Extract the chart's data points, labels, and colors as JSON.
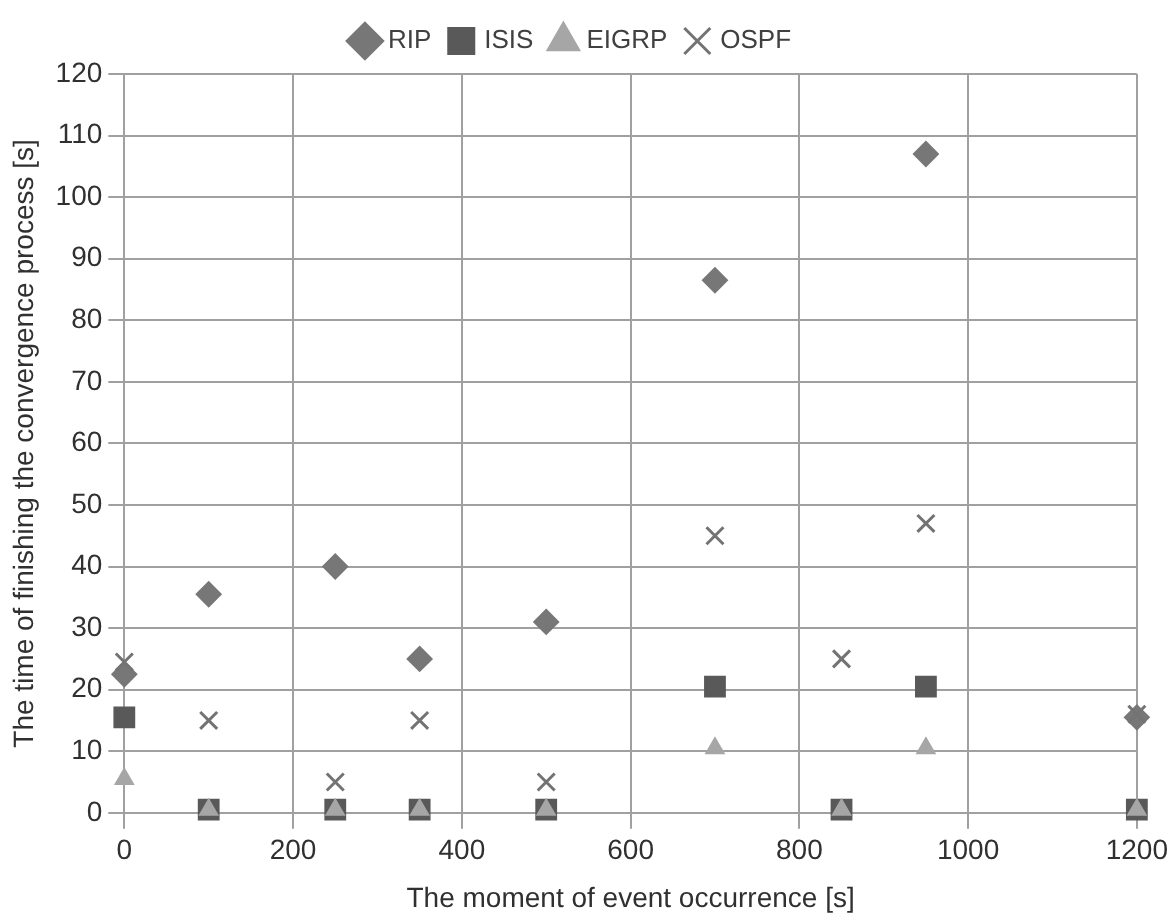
{
  "chart_data": {
    "type": "scatter",
    "xlabel": "The moment of event occurrence [s]",
    "ylabel": "The time of finishing the convergence process [s]",
    "x": [
      0,
      100,
      250,
      350,
      500,
      700,
      850,
      950,
      1200
    ],
    "xlim": [
      0,
      1200
    ],
    "xticks": [
      0,
      200,
      400,
      600,
      800,
      1000,
      1200
    ],
    "ylim": [
      0,
      120
    ],
    "yticks": [
      0,
      10,
      20,
      30,
      40,
      50,
      60,
      70,
      80,
      90,
      100,
      110,
      120
    ],
    "grid": true,
    "legend": "top",
    "series": [
      {
        "name": "RIP",
        "color": "#777777",
        "marker": "diamond",
        "values": [
          22.5,
          35.5,
          40,
          25,
          31,
          86.5,
          null,
          107,
          15.5
        ]
      },
      {
        "name": "ISIS",
        "color": "#595959",
        "marker": "square",
        "values": [
          15.5,
          0.5,
          0.5,
          0.5,
          0.5,
          20.5,
          0.5,
          20.5,
          0.5
        ]
      },
      {
        "name": "EIGRP",
        "color": "#a6a6a6",
        "marker": "triangle",
        "values": [
          5.5,
          0.5,
          0.5,
          0.5,
          0.5,
          10.5,
          0.5,
          10.5,
          0.5
        ]
      },
      {
        "name": "OSPF",
        "color": "#737373",
        "marker": "cross",
        "values": [
          24.5,
          15,
          5,
          15,
          5,
          45,
          25,
          47,
          16
        ]
      }
    ]
  }
}
